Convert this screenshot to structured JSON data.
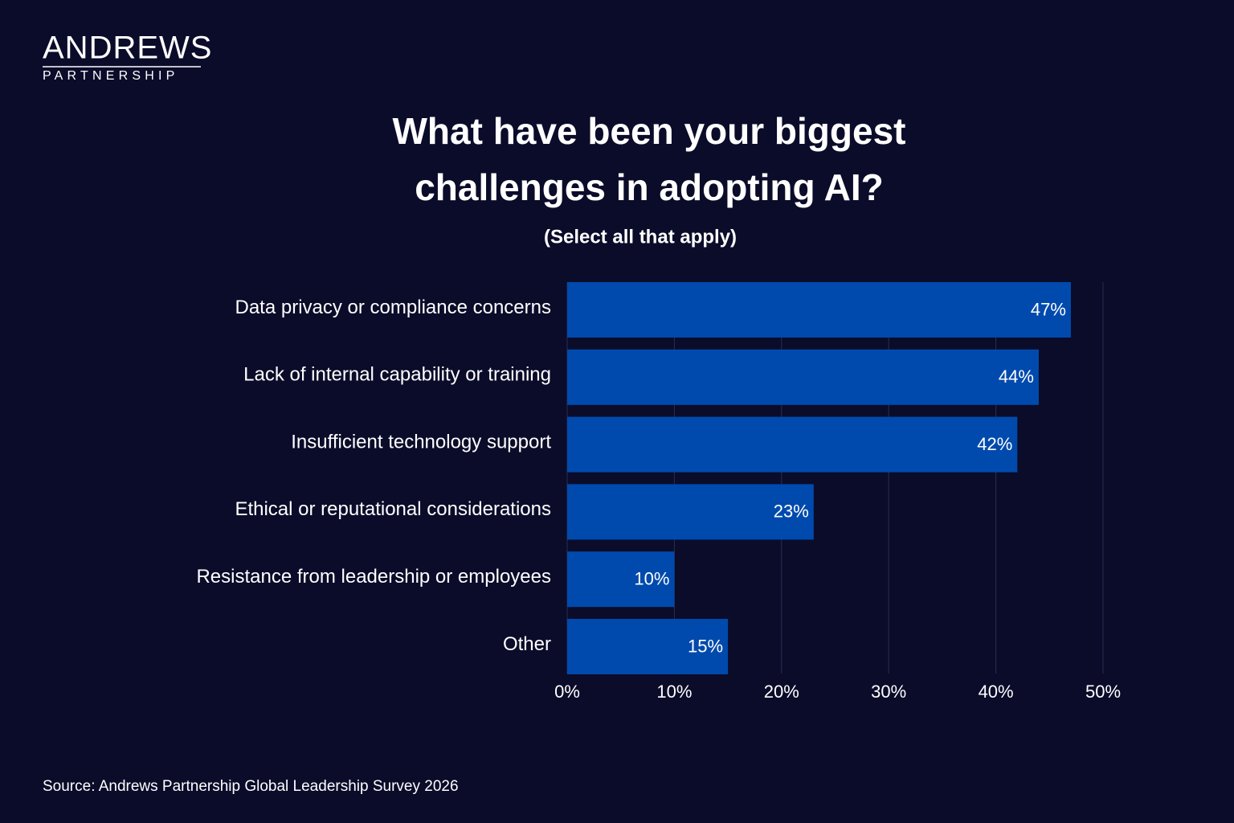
{
  "brand": {
    "name": "ANDREWS",
    "tagline": "PARTNERSHIP"
  },
  "chart_data": {
    "type": "bar",
    "orientation": "horizontal",
    "title": "What have been your biggest challenges in adopting AI?",
    "subtitle": "(Select all that apply)",
    "categories": [
      "Data privacy or compliance concerns",
      "Lack of internal capability or training",
      "Insufficient technology support",
      "Ethical or reputational considerations",
      "Resistance from leadership or employees",
      "Other"
    ],
    "values": [
      47,
      44,
      42,
      23,
      10,
      15
    ],
    "value_labels": [
      "47%",
      "44%",
      "42%",
      "23%",
      "10%",
      "15%"
    ],
    "color": "#004aad",
    "xlim": [
      0,
      50
    ],
    "xticks": [
      {
        "value": 0,
        "label": "0%"
      },
      {
        "value": 10,
        "label": "10%"
      },
      {
        "value": 20,
        "label": "20%"
      },
      {
        "value": 30,
        "label": "30%"
      },
      {
        "value": 40,
        "label": "40%"
      },
      {
        "value": 50,
        "label": "50%"
      }
    ],
    "grid": true,
    "source": "Source: Andrews Partnership Global Leadership Survey 2026"
  }
}
